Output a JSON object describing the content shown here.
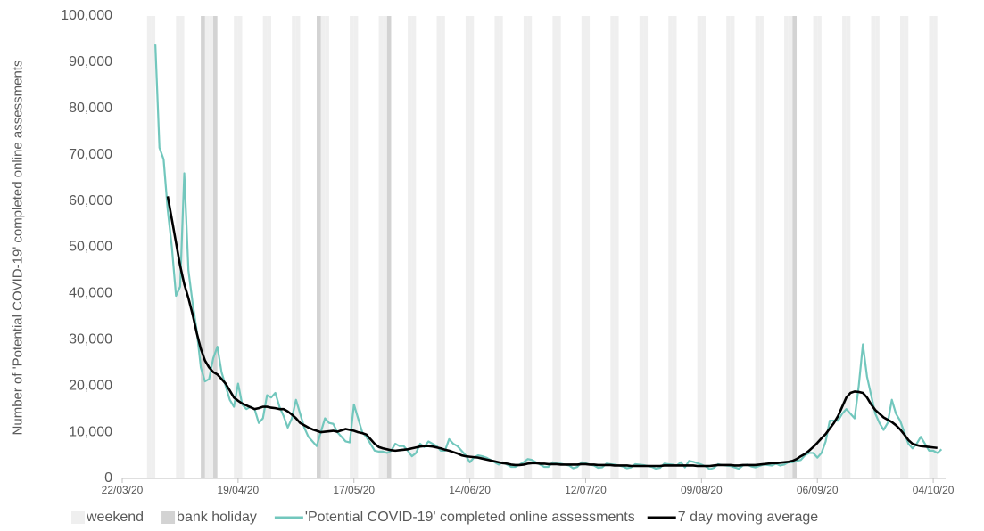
{
  "chart_data": {
    "type": "line",
    "y_label": "Number of 'Potential COVID-19' completed online assessments",
    "xlim": [
      "22/03/20",
      "07/10/20"
    ],
    "xticks": [
      "22/03/20",
      "19/04/20",
      "17/05/20",
      "14/06/20",
      "12/07/20",
      "09/08/20",
      "06/09/20",
      "04/10/20"
    ],
    "ylim": [
      0,
      100000
    ],
    "yticks": [
      0,
      {
        "value": 10000,
        "label": "10,000"
      },
      {
        "value": 20000,
        "label": "20,000"
      },
      {
        "value": 30000,
        "label": "30,000"
      },
      {
        "value": 40000,
        "label": "40,000"
      },
      {
        "value": 50000,
        "label": "50,000"
      },
      {
        "value": 60000,
        "label": "60,000"
      },
      {
        "value": 70000,
        "label": "70,000"
      },
      {
        "value": 80000,
        "label": "80,000"
      },
      {
        "value": 90000,
        "label": "90,000"
      },
      {
        "value": 100000,
        "label": "100,000"
      }
    ],
    "bands": [
      {
        "name": "weekend",
        "color": "#efefef",
        "dates": [
          "28/03/20",
          "29/03/20",
          "04/04/20",
          "05/04/20",
          "11/04/20",
          "12/04/20",
          "18/04/20",
          "19/04/20",
          "25/04/20",
          "26/04/20",
          "02/05/20",
          "03/05/20",
          "09/05/20",
          "10/05/20",
          "16/05/20",
          "17/05/20",
          "23/05/20",
          "24/05/20",
          "30/05/20",
          "31/05/20",
          "06/06/20",
          "07/06/20",
          "13/06/20",
          "14/06/20",
          "20/06/20",
          "21/06/20",
          "27/06/20",
          "28/06/20",
          "04/07/20",
          "05/07/20",
          "11/07/20",
          "12/07/20",
          "18/07/20",
          "19/07/20",
          "25/07/20",
          "26/07/20",
          "01/08/20",
          "02/08/20",
          "08/08/20",
          "09/08/20",
          "15/08/20",
          "16/08/20",
          "22/08/20",
          "23/08/20",
          "29/08/20",
          "30/08/20",
          "05/09/20",
          "06/09/20",
          "12/09/20",
          "13/09/20",
          "19/09/20",
          "20/09/20",
          "26/09/20",
          "27/09/20",
          "03/10/20",
          "04/10/20"
        ]
      },
      {
        "name": "bank holiday",
        "color": "#d3d3d3",
        "dates": [
          "10/04/20",
          "13/04/20",
          "08/05/20",
          "25/05/20",
          "31/08/20"
        ]
      }
    ],
    "x": [
      "30/03/20",
      "31/03/20",
      "01/04/20",
      "02/04/20",
      "03/04/20",
      "04/04/20",
      "05/04/20",
      "06/04/20",
      "07/04/20",
      "08/04/20",
      "09/04/20",
      "10/04/20",
      "11/04/20",
      "12/04/20",
      "13/04/20",
      "14/04/20",
      "15/04/20",
      "16/04/20",
      "17/04/20",
      "18/04/20",
      "19/04/20",
      "20/04/20",
      "21/04/20",
      "22/04/20",
      "23/04/20",
      "24/04/20",
      "25/04/20",
      "26/04/20",
      "27/04/20",
      "28/04/20",
      "29/04/20",
      "30/04/20",
      "01/05/20",
      "02/05/20",
      "03/05/20",
      "04/05/20",
      "05/05/20",
      "06/05/20",
      "07/05/20",
      "08/05/20",
      "09/05/20",
      "10/05/20",
      "11/05/20",
      "12/05/20",
      "13/05/20",
      "14/05/20",
      "15/05/20",
      "16/05/20",
      "17/05/20",
      "18/05/20",
      "19/05/20",
      "20/05/20",
      "21/05/20",
      "22/05/20",
      "23/05/20",
      "24/05/20",
      "25/05/20",
      "26/05/20",
      "27/05/20",
      "28/05/20",
      "29/05/20",
      "30/05/20",
      "31/05/20",
      "01/06/20",
      "02/06/20",
      "03/06/20",
      "04/06/20",
      "05/06/20",
      "06/06/20",
      "07/06/20",
      "08/06/20",
      "09/06/20",
      "10/06/20",
      "11/06/20",
      "12/06/20",
      "13/06/20",
      "14/06/20",
      "15/06/20",
      "16/06/20",
      "17/06/20",
      "18/06/20",
      "19/06/20",
      "20/06/20",
      "21/06/20",
      "22/06/20",
      "23/06/20",
      "24/06/20",
      "25/06/20",
      "26/06/20",
      "27/06/20",
      "28/06/20",
      "29/06/20",
      "30/06/20",
      "01/07/20",
      "02/07/20",
      "03/07/20",
      "04/07/20",
      "05/07/20",
      "06/07/20",
      "07/07/20",
      "08/07/20",
      "09/07/20",
      "10/07/20",
      "11/07/20",
      "12/07/20",
      "13/07/20",
      "14/07/20",
      "15/07/20",
      "16/07/20",
      "17/07/20",
      "18/07/20",
      "19/07/20",
      "20/07/20",
      "21/07/20",
      "22/07/20",
      "23/07/20",
      "24/07/20",
      "25/07/20",
      "26/07/20",
      "27/07/20",
      "28/07/20",
      "29/07/20",
      "30/07/20",
      "31/07/20",
      "01/08/20",
      "02/08/20",
      "03/08/20",
      "04/08/20",
      "05/08/20",
      "06/08/20",
      "07/08/20",
      "08/08/20",
      "09/08/20",
      "10/08/20",
      "11/08/20",
      "12/08/20",
      "13/08/20",
      "14/08/20",
      "15/08/20",
      "16/08/20",
      "17/08/20",
      "18/08/20",
      "19/08/20",
      "20/08/20",
      "21/08/20",
      "22/08/20",
      "23/08/20",
      "24/08/20",
      "25/08/20",
      "26/08/20",
      "27/08/20",
      "28/08/20",
      "29/08/20",
      "30/08/20",
      "31/08/20",
      "01/09/20",
      "02/09/20",
      "03/09/20",
      "04/09/20",
      "05/09/20",
      "06/09/20",
      "07/09/20",
      "08/09/20",
      "09/09/20",
      "10/09/20",
      "11/09/20",
      "12/09/20",
      "13/09/20",
      "14/09/20",
      "15/09/20",
      "16/09/20",
      "17/09/20",
      "18/09/20",
      "19/09/20",
      "20/09/20",
      "21/09/20",
      "22/09/20",
      "23/09/20",
      "24/09/20",
      "25/09/20",
      "26/09/20",
      "27/09/20",
      "28/09/20",
      "29/09/20",
      "30/09/20",
      "01/10/20",
      "02/10/20",
      "03/10/20",
      "04/10/20",
      "05/10/20",
      "06/10/20"
    ],
    "series": [
      {
        "name": "'Potential COVID-19' completed online assessments",
        "color": "#72c7bd",
        "width": 2.2,
        "values": [
          94000,
          71500,
          69000,
          58000,
          50000,
          39500,
          41500,
          66000,
          45000,
          38000,
          32000,
          24000,
          21000,
          21500,
          26000,
          28500,
          23000,
          20000,
          17000,
          15500,
          20500,
          16000,
          15000,
          15500,
          15000,
          12000,
          13000,
          18000,
          17500,
          18500,
          15500,
          13500,
          11000,
          13000,
          17000,
          14000,
          11000,
          9000,
          8000,
          7000,
          10000,
          13000,
          12000,
          11800,
          10000,
          9000,
          8000,
          7800,
          16000,
          13000,
          10000,
          9000,
          7500,
          6000,
          5800,
          5800,
          5500,
          6000,
          7500,
          7000,
          7000,
          6000,
          4800,
          5500,
          7500,
          6800,
          8000,
          7500,
          7000,
          6000,
          6000,
          8500,
          7500,
          7000,
          6000,
          5000,
          3500,
          4500,
          5000,
          4800,
          4500,
          4000,
          3500,
          3000,
          3500,
          3000,
          2500,
          2500,
          3000,
          3500,
          4200,
          4000,
          3500,
          3000,
          2500,
          2500,
          3500,
          3200,
          3200,
          3000,
          2800,
          2200,
          2500,
          3500,
          3300,
          3000,
          2800,
          2300,
          2400,
          3200,
          3100,
          3000,
          2800,
          2600,
          2200,
          2400,
          3100,
          3000,
          2900,
          2700,
          2500,
          2100,
          2300,
          3200,
          3100,
          3000,
          2800,
          3500,
          2400,
          3800,
          3600,
          3300,
          3000,
          2600,
          2000,
          2300,
          3100,
          2900,
          2800,
          2700,
          2400,
          2100,
          2800,
          3000,
          2600,
          2400,
          2700,
          3000,
          2900,
          2800,
          3200,
          2800,
          3000,
          3500,
          3500,
          3800,
          4000,
          5000,
          5500,
          5500,
          4500,
          5500,
          8000,
          12500,
          12500,
          12500,
          14000,
          15000,
          14000,
          13000,
          20000,
          29000,
          22000,
          18000,
          14000,
          12000,
          10500,
          12000,
          17000,
          14000,
          12500,
          10000,
          7500,
          6500,
          7500,
          9000,
          7500,
          6000,
          6000,
          5500,
          6300
        ]
      },
      {
        "name": "7 day moving average",
        "color": "#000000",
        "width": 2.6,
        "values": [
          null,
          null,
          null,
          61000,
          56000,
          51000,
          46000,
          42000,
          39000,
          35500,
          31500,
          28000,
          25500,
          24000,
          23000,
          22500,
          21500,
          20500,
          19000,
          17500,
          16800,
          16200,
          15800,
          15400,
          15000,
          15200,
          15500,
          15500,
          15300,
          15200,
          15000,
          15000,
          14500,
          13800,
          13000,
          12000,
          11500,
          11000,
          10600,
          10300,
          10000,
          10100,
          10200,
          10300,
          10100,
          10400,
          10700,
          10500,
          10300,
          10000,
          9800,
          9500,
          8500,
          7500,
          6800,
          6500,
          6300,
          6100,
          6000,
          6100,
          6200,
          6300,
          6500,
          6700,
          6900,
          7000,
          7000,
          6900,
          6700,
          6500,
          6200,
          6000,
          5700,
          5400,
          5000,
          4800,
          4700,
          4600,
          4500,
          4300,
          4100,
          3900,
          3700,
          3500,
          3300,
          3200,
          3000,
          2900,
          2900,
          3000,
          3200,
          3300,
          3300,
          3200,
          3200,
          3100,
          3100,
          3100,
          3000,
          3000,
          3000,
          3000,
          3000,
          3100,
          3100,
          3000,
          3000,
          2900,
          2900,
          2900,
          2900,
          2800,
          2800,
          2800,
          2800,
          2700,
          2700,
          2700,
          2700,
          2700,
          2700,
          2700,
          2700,
          2800,
          2800,
          2800,
          2800,
          2800,
          2800,
          2800,
          2800,
          2700,
          2700,
          2700,
          2700,
          2800,
          2900,
          2900,
          2900,
          2900,
          2800,
          2800,
          2900,
          2900,
          2900,
          2900,
          3000,
          3100,
          3200,
          3300,
          3300,
          3400,
          3500,
          3600,
          3800,
          4200,
          4800,
          5300,
          6000,
          6800,
          7700,
          8700,
          9600,
          10800,
          12000,
          13500,
          15500,
          17500,
          18500,
          18800,
          18700,
          18500,
          17500,
          16000,
          14800,
          14000,
          13200,
          12700,
          12200,
          11500,
          10600,
          9500,
          8300,
          7500,
          7200,
          7000,
          6900,
          6800,
          6700,
          6600,
          null
        ]
      }
    ]
  }
}
